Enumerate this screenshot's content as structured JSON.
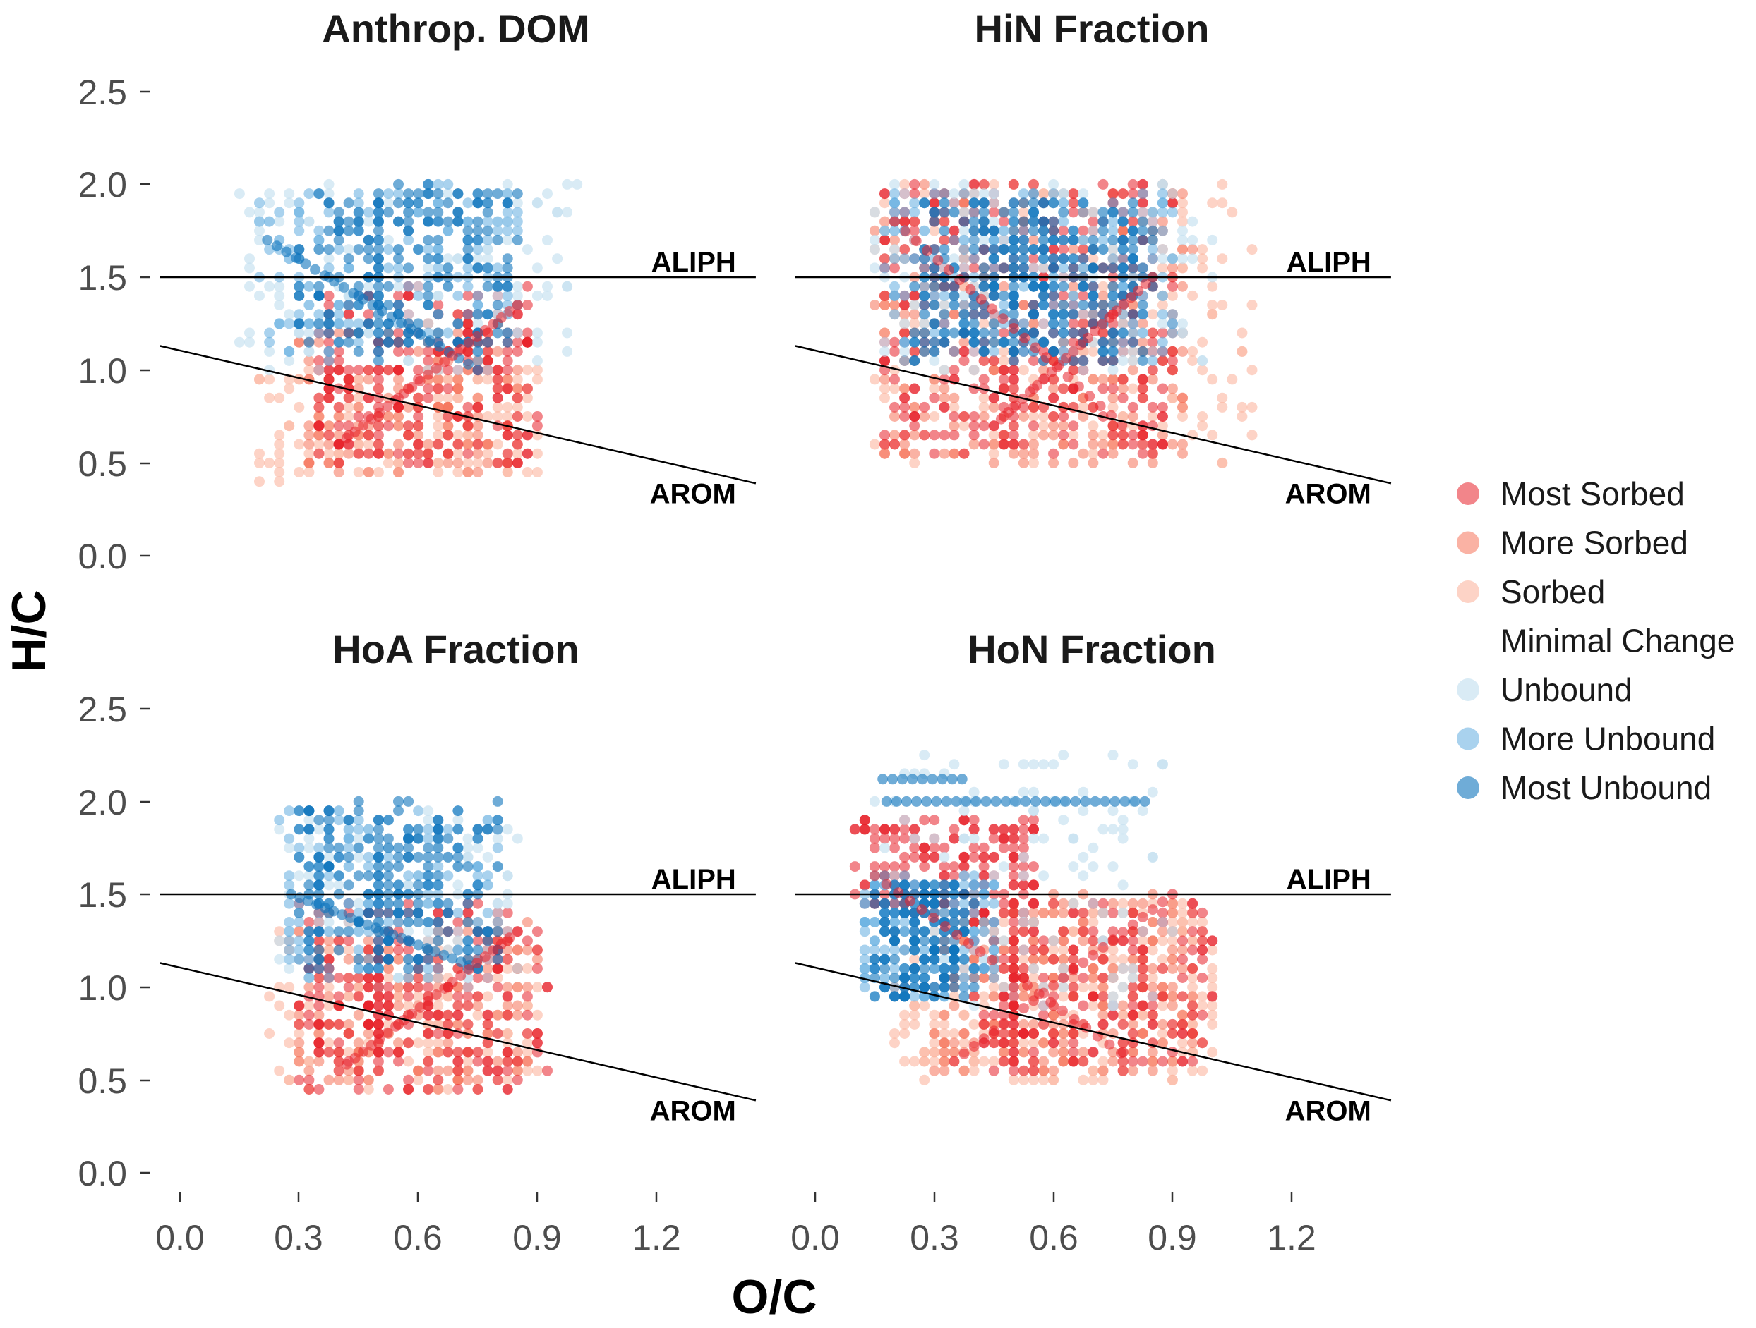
{
  "chart_data": {
    "type": "scatter",
    "layout": "2x2 facets",
    "xlabel": "O/C",
    "ylabel": "H/C",
    "xlim": [
      -0.05,
      1.45
    ],
    "ylim": [
      -0.15,
      2.65
    ],
    "x_ticks": [
      "0.0",
      "0.3",
      "0.6",
      "0.9",
      "1.2"
    ],
    "x_tick_values": [
      0.0,
      0.3,
      0.6,
      0.9,
      1.2
    ],
    "y_ticks": [
      "0.0",
      "0.5",
      "1.0",
      "1.5",
      "2.0",
      "2.5"
    ],
    "y_tick_values": [
      0.0,
      0.5,
      1.0,
      1.5,
      2.0,
      2.5
    ],
    "grid": false,
    "reference_lines": [
      {
        "label": "ALIPH",
        "type": "horizontal",
        "y": 1.5
      },
      {
        "label": "AROM",
        "type": "line",
        "x0": -0.05,
        "y0": 1.13,
        "x1": 1.45,
        "y1": 0.39
      }
    ],
    "legend": {
      "position": "right",
      "entries": [
        {
          "name": "Most Sorbed",
          "color": "#e8202a",
          "opacity": 0.55
        },
        {
          "name": "More Sorbed",
          "color": "#f5735a",
          "opacity": 0.55
        },
        {
          "name": "Sorbed",
          "color": "#fbb5a0",
          "opacity": 0.6
        },
        {
          "name": "Minimal Change",
          "color": "#ffffff",
          "opacity": 0
        },
        {
          "name": "Unbound",
          "color": "#c5e0ef",
          "opacity": 0.65
        },
        {
          "name": "More Unbound",
          "color": "#62ade0",
          "opacity": 0.55
        },
        {
          "name": "Most Unbound",
          "color": "#0f74bd",
          "opacity": 0.6
        }
      ]
    },
    "panels": [
      {
        "title": "Anthrop. DOM",
        "clusters": [
          {
            "series": "Sorbed",
            "x_range": [
              0.2,
              0.9
            ],
            "y_range": [
              0.42,
              1.0
            ],
            "count": 170
          },
          {
            "series": "More Sorbed",
            "x_range": [
              0.3,
              0.85
            ],
            "y_range": [
              0.45,
              1.3
            ],
            "count": 170
          },
          {
            "series": "Most Sorbed",
            "x_range": [
              0.35,
              0.9
            ],
            "y_range": [
              0.5,
              1.45
            ],
            "count": 230
          },
          {
            "series": "Unbound",
            "x_range": [
              0.15,
              1.0
            ],
            "y_range": [
              1.0,
              2.0
            ],
            "count": 150
          },
          {
            "series": "More Unbound",
            "x_range": [
              0.2,
              0.85
            ],
            "y_range": [
              1.05,
              2.0
            ],
            "count": 150
          },
          {
            "series": "Most Unbound",
            "x_range": [
              0.3,
              0.85
            ],
            "y_range": [
              1.1,
              2.0
            ],
            "count": 190
          }
        ],
        "diagonals": [
          {
            "series": "Most Unbound",
            "x0": 0.22,
            "y0": 1.7,
            "x1": 0.75,
            "y1": 1.0
          },
          {
            "series": "Most Sorbed",
            "x0": 0.4,
            "y0": 0.6,
            "x1": 0.85,
            "y1": 1.35
          }
        ],
        "verticals": [
          {
            "series": "Most Unbound",
            "x": 0.5,
            "y_range": [
              1.05,
              1.95
            ]
          },
          {
            "series": "Most Sorbed",
            "x": 0.5,
            "y_range": [
              0.55,
              1.0
            ]
          }
        ]
      },
      {
        "title": "HiN Fraction",
        "clusters": [
          {
            "series": "Sorbed",
            "x_range": [
              0.15,
              1.1
            ],
            "y_range": [
              0.5,
              2.0
            ],
            "count": 260
          },
          {
            "series": "More Sorbed",
            "x_range": [
              0.15,
              0.95
            ],
            "y_range": [
              0.5,
              2.0
            ],
            "count": 260
          },
          {
            "series": "Most Sorbed",
            "x_range": [
              0.17,
              0.9
            ],
            "y_range": [
              0.55,
              2.0
            ],
            "count": 380
          },
          {
            "series": "Unbound",
            "x_range": [
              0.15,
              1.0
            ],
            "y_range": [
              1.0,
              2.0
            ],
            "count": 160
          },
          {
            "series": "More Unbound",
            "x_range": [
              0.18,
              0.9
            ],
            "y_range": [
              1.05,
              1.95
            ],
            "count": 200
          },
          {
            "series": "Most Unbound",
            "x_range": [
              0.25,
              0.85
            ],
            "y_range": [
              1.05,
              1.92
            ],
            "count": 280
          }
        ],
        "diagonals": [
          {
            "series": "Most Sorbed",
            "x0": 0.2,
            "y0": 1.8,
            "x1": 0.8,
            "y1": 0.65
          },
          {
            "series": "Most Sorbed",
            "x0": 0.45,
            "y0": 0.7,
            "x1": 0.85,
            "y1": 1.5
          }
        ],
        "verticals": [
          {
            "series": "Most Unbound",
            "x": 0.5,
            "y_range": [
              1.05,
              1.9
            ]
          },
          {
            "series": "Most Sorbed",
            "x": 0.5,
            "y_range": [
              0.6,
              1.0
            ]
          }
        ]
      },
      {
        "title": "HoA Fraction",
        "clusters": [
          {
            "series": "Sorbed",
            "x_range": [
              0.2,
              0.9
            ],
            "y_range": [
              0.45,
              1.3
            ],
            "count": 180
          },
          {
            "series": "More Sorbed",
            "x_range": [
              0.3,
              0.9
            ],
            "y_range": [
              0.45,
              1.4
            ],
            "count": 180
          },
          {
            "series": "Most Sorbed",
            "x_range": [
              0.3,
              0.92
            ],
            "y_range": [
              0.45,
              1.45
            ],
            "count": 260
          },
          {
            "series": "Unbound",
            "x_range": [
              0.25,
              0.85
            ],
            "y_range": [
              1.0,
              1.95
            ],
            "count": 120
          },
          {
            "series": "More Unbound",
            "x_range": [
              0.25,
              0.8
            ],
            "y_range": [
              1.05,
              1.95
            ],
            "count": 150
          },
          {
            "series": "Most Unbound",
            "x_range": [
              0.3,
              0.8
            ],
            "y_range": [
              1.1,
              2.0
            ],
            "count": 190
          }
        ],
        "diagonals": [
          {
            "series": "Most Unbound",
            "x0": 0.28,
            "y0": 1.5,
            "x1": 0.75,
            "y1": 1.1
          },
          {
            "series": "Most Sorbed",
            "x0": 0.4,
            "y0": 0.55,
            "x1": 0.85,
            "y1": 1.3
          }
        ],
        "verticals": [
          {
            "series": "Most Unbound",
            "x": 0.5,
            "y_range": [
              1.1,
              1.85
            ]
          },
          {
            "series": "Most Sorbed",
            "x": 0.5,
            "y_range": [
              0.55,
              1.05
            ]
          }
        ]
      },
      {
        "title": "HoN Fraction",
        "clusters": [
          {
            "series": "Sorbed",
            "x_range": [
              0.2,
              1.0
            ],
            "y_range": [
              0.5,
              1.45
            ],
            "count": 320
          },
          {
            "series": "More Sorbed",
            "x_range": [
              0.3,
              0.95
            ],
            "y_range": [
              0.55,
              1.5
            ],
            "count": 260
          },
          {
            "series": "Most Sorbed",
            "x_range": [
              0.1,
              0.55
            ],
            "y_range": [
              1.4,
              1.9
            ],
            "count": 180
          },
          {
            "series": "Most Sorbed",
            "x_range": [
              0.4,
              1.0
            ],
            "y_range": [
              0.55,
              1.45
            ],
            "count": 200
          },
          {
            "series": "Unbound",
            "x_range": [
              0.15,
              0.9
            ],
            "y_range": [
              0.9,
              2.25
            ],
            "count": 130
          },
          {
            "series": "More Unbound",
            "x_range": [
              0.12,
              0.45
            ],
            "y_range": [
              0.95,
              1.6
            ],
            "count": 200
          },
          {
            "series": "Most Unbound",
            "x_range": [
              0.15,
              0.4
            ],
            "y_range": [
              0.95,
              1.55
            ],
            "count": 150
          }
        ],
        "diagonals": [
          {
            "series": "Most Sorbed",
            "x0": 0.15,
            "y0": 1.6,
            "x1": 0.8,
            "y1": 0.6
          },
          {
            "series": "Most Sorbed",
            "x0": 0.35,
            "y0": 0.6,
            "x1": 0.9,
            "y1": 1.5
          }
        ],
        "rows": [
          {
            "series": "Most Unbound",
            "y": 2.0,
            "x_range": [
              0.18,
              0.85
            ]
          },
          {
            "series": "Most Unbound",
            "y": 2.12,
            "x_range": [
              0.17,
              0.38
            ]
          }
        ],
        "verticals": [
          {
            "series": "Most Sorbed",
            "x": 0.5,
            "y_range": [
              0.55,
              1.3
            ]
          }
        ]
      }
    ]
  }
}
